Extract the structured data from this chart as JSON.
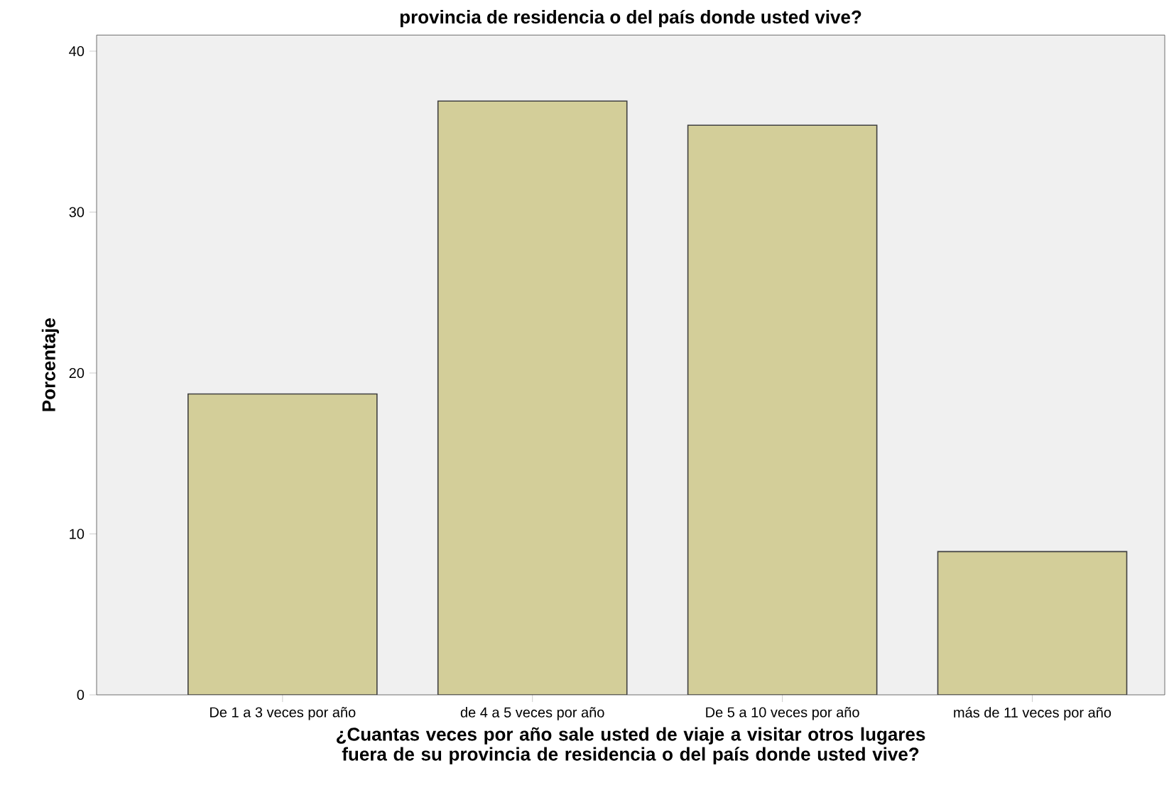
{
  "chart_data": {
    "type": "bar",
    "title": "provincia de residencia o del país donde usted vive?",
    "xlabel": "¿Cuantas veces por año sale usted de viaje a visitar otros lugares fuera de su provincia de residencia o del país donde usted vive?",
    "ylabel": "Porcentaje",
    "categories": [
      "De 1 a 3 veces por año",
      "de 4 a 5 veces por año",
      "De 5 a 10 veces por año",
      "más de 11 veces por año"
    ],
    "values": [
      18.7,
      36.9,
      35.4,
      8.9
    ],
    "color": "#d3ce99",
    "ylim": [
      0,
      41
    ],
    "yticks": [
      0,
      10,
      20,
      30,
      40
    ]
  }
}
